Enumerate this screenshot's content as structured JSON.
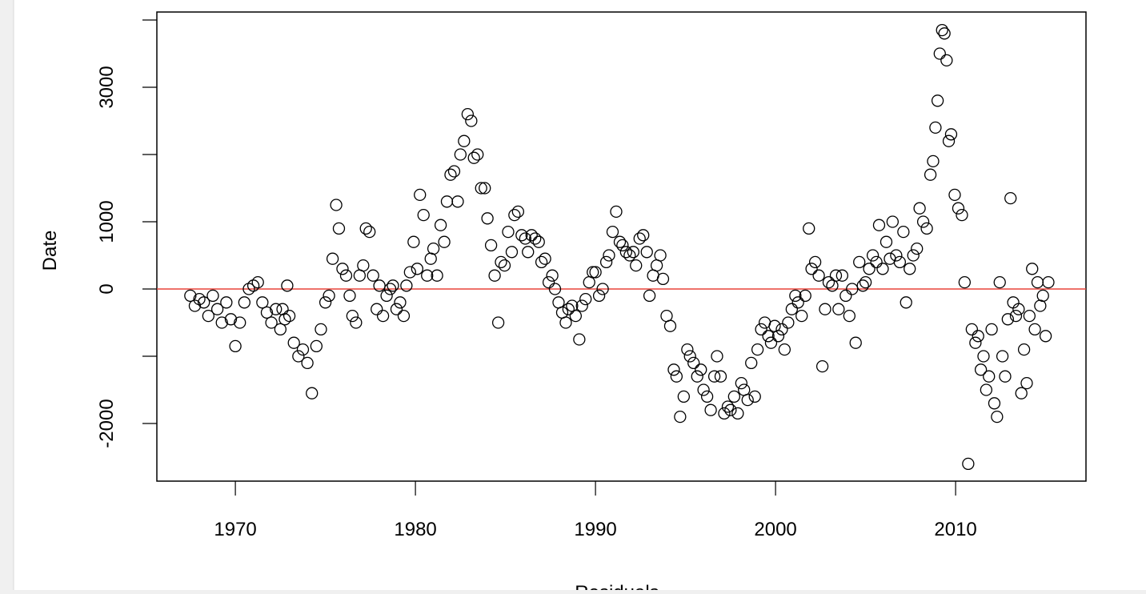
{
  "chart_data": {
    "type": "scatter",
    "xlabel": "Residuals",
    "ylabel": "Date",
    "xlim": [
      1965.64,
      2017.24
    ],
    "ylim": [
      -2857,
      4119
    ],
    "xticks": [
      1970,
      1980,
      1990,
      2000,
      2010
    ],
    "yticks": [
      -2000,
      {
        "value": -1000,
        "label": null
      },
      0,
      1000,
      {
        "value": 2000,
        "label": null
      },
      3000,
      {
        "value": 4000,
        "label": null
      }
    ],
    "color": "#000000",
    "hline": 0,
    "hline_color": "#e8433a",
    "x": [
      1967.5,
      1967.75,
      1968,
      1968.25,
      1968.5,
      1968.75,
      1969,
      1969.25,
      1969.5,
      1969.75,
      1970,
      1970.25,
      1970.5,
      1970.75,
      1971,
      1971.25,
      1971.5,
      1971.75,
      1972,
      1972.25,
      1972.5,
      1972.62,
      1972.75,
      1972.88,
      1973,
      1973.25,
      1973.5,
      1973.75,
      1974,
      1974.25,
      1974.5,
      1974.75,
      1975,
      1975.2,
      1975.4,
      1975.6,
      1975.75,
      1975.95,
      1976.15,
      1976.35,
      1976.5,
      1976.7,
      1976.9,
      1977.1,
      1977.25,
      1977.45,
      1977.65,
      1977.85,
      1978,
      1978.2,
      1978.4,
      1978.6,
      1978.75,
      1978.95,
      1979.15,
      1979.35,
      1979.5,
      1979.7,
      1979.9,
      1980.1,
      1980.25,
      1980.45,
      1980.65,
      1980.85,
      1981,
      1981.2,
      1981.4,
      1981.6,
      1981.75,
      1981.95,
      1982.15,
      1982.35,
      1982.5,
      1982.7,
      1982.9,
      1983.1,
      1983.25,
      1983.45,
      1983.65,
      1983.85,
      1984,
      1984.2,
      1984.4,
      1984.6,
      1984.75,
      1984.95,
      1985.15,
      1985.35,
      1985.5,
      1985.7,
      1985.9,
      1986.1,
      1986.25,
      1986.45,
      1986.65,
      1986.85,
      1987,
      1987.2,
      1987.4,
      1987.6,
      1987.75,
      1987.95,
      1988.15,
      1988.35,
      1988.5,
      1988.7,
      1988.9,
      1989.1,
      1989.25,
      1989.45,
      1989.65,
      1989.85,
      1990,
      1990.2,
      1990.4,
      1990.6,
      1990.75,
      1990.95,
      1991.15,
      1991.35,
      1991.5,
      1991.7,
      1991.9,
      1992.1,
      1992.25,
      1992.45,
      1992.65,
      1992.85,
      1993,
      1993.2,
      1993.4,
      1993.6,
      1993.75,
      1993.95,
      1994.15,
      1994.35,
      1994.5,
      1994.7,
      1994.9,
      1995.1,
      1995.25,
      1995.45,
      1995.65,
      1995.85,
      1996,
      1996.2,
      1996.4,
      1996.6,
      1996.75,
      1996.95,
      1997.15,
      1997.35,
      1997.5,
      1997.7,
      1997.9,
      1998.1,
      1998.25,
      1998.45,
      1998.65,
      1998.85,
      1999,
      1999.2,
      1999.4,
      1999.6,
      1999.75,
      1999.95,
      2000.15,
      2000.35,
      2000.5,
      2000.7,
      2000.9,
      2001.1,
      2001.25,
      2001.45,
      2001.65,
      2001.85,
      2002,
      2002.2,
      2002.4,
      2002.6,
      2002.75,
      2002.95,
      2003.15,
      2003.35,
      2003.5,
      2003.7,
      2003.9,
      2004.1,
      2004.25,
      2004.45,
      2004.65,
      2004.85,
      2005,
      2005.2,
      2005.4,
      2005.6,
      2005.75,
      2005.95,
      2006.15,
      2006.35,
      2006.5,
      2006.7,
      2006.9,
      2007.1,
      2007.25,
      2007.45,
      2007.65,
      2007.85,
      2008,
      2008.2,
      2008.4,
      2008.6,
      2008.75,
      2008.88,
      2009,
      2009.12,
      2009.25,
      2009.38,
      2009.5,
      2009.62,
      2009.75,
      2009.95,
      2010.15,
      2010.35,
      2010.5,
      2010.7,
      2010.9,
      2011.1,
      2011.25,
      2011.4,
      2011.55,
      2011.7,
      2011.85,
      2012,
      2012.15,
      2012.3,
      2012.45,
      2012.6,
      2012.75,
      2012.9,
      2013.05,
      2013.2,
      2013.35,
      2013.5,
      2013.65,
      2013.8,
      2013.95,
      2014.1,
      2014.25,
      2014.4,
      2014.55,
      2014.7,
      2014.85,
      2015,
      2015.15
    ],
    "values": [
      -100,
      -250,
      -150,
      -200,
      -400,
      -100,
      -300,
      -500,
      -200,
      -450,
      -850,
      -500,
      -200,
      0,
      50,
      100,
      -200,
      -350,
      -500,
      -300,
      -600,
      -300,
      -450,
      50,
      -400,
      -800,
      -1000,
      -900,
      -1100,
      -1550,
      -850,
      -600,
      -200,
      -100,
      450,
      1250,
      900,
      300,
      200,
      -100,
      -400,
      -500,
      200,
      350,
      900,
      850,
      200,
      -300,
      50,
      -400,
      -100,
      0,
      50,
      -300,
      -200,
      -400,
      50,
      250,
      700,
      300,
      1400,
      1100,
      200,
      450,
      600,
      200,
      950,
      700,
      1300,
      1700,
      1750,
      1300,
      2000,
      2200,
      2600,
      2500,
      1950,
      2000,
      1500,
      1500,
      1050,
      650,
      200,
      -500,
      400,
      350,
      850,
      550,
      1100,
      1150,
      800,
      750,
      550,
      800,
      750,
      700,
      400,
      450,
      100,
      200,
      0,
      -200,
      -350,
      -500,
      -300,
      -250,
      -400,
      -750,
      -250,
      -150,
      100,
      250,
      250,
      -100,
      0,
      400,
      500,
      850,
      1150,
      700,
      650,
      550,
      500,
      550,
      350,
      750,
      800,
      550,
      -100,
      200,
      350,
      500,
      150,
      -400,
      -550,
      -1200,
      -1300,
      -1900,
      -1600,
      -900,
      -1000,
      -1100,
      -1300,
      -1200,
      -1500,
      -1600,
      -1800,
      -1300,
      -1000,
      -1300,
      -1850,
      -1750,
      -1800,
      -1600,
      -1850,
      -1400,
      -1500,
      -1650,
      -1100,
      -1600,
      -900,
      -600,
      -500,
      -700,
      -800,
      -550,
      -700,
      -600,
      -900,
      -500,
      -300,
      -100,
      -200,
      -400,
      -100,
      900,
      300,
      400,
      200,
      -1150,
      -300,
      100,
      50,
      200,
      -300,
      200,
      -100,
      -400,
      0,
      -800,
      400,
      50,
      100,
      300,
      500,
      400,
      950,
      300,
      700,
      450,
      1000,
      500,
      400,
      850,
      -200,
      300,
      500,
      600,
      1200,
      1000,
      900,
      1700,
      1900,
      2400,
      2800,
      3500,
      3850,
      3800,
      3400,
      2200,
      2300,
      1400,
      1200,
      1100,
      100,
      -2600,
      -600,
      -800,
      -700,
      -1200,
      -1000,
      -1500,
      -1300,
      -600,
      -1700,
      -1900,
      100,
      -1000,
      -1300,
      -450,
      1350,
      -200,
      -400,
      -300,
      -1550,
      -900,
      -1400,
      -400,
      300,
      -600,
      100,
      -250,
      -100,
      -700,
      100
    ]
  }
}
